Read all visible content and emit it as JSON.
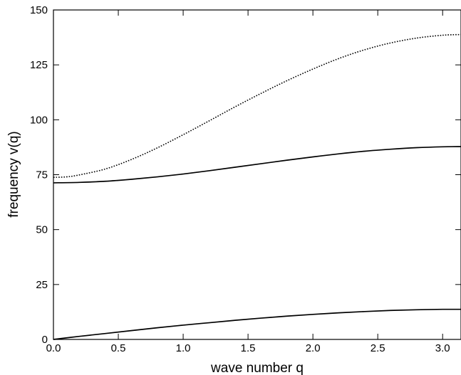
{
  "chart_data": {
    "type": "line",
    "title": "",
    "xlabel": "wave number q",
    "ylabel": "frequency v(q)",
    "xlim": [
      0,
      3.1416
    ],
    "ylim": [
      0,
      150
    ],
    "xticks": [
      "0.0",
      "0.5",
      "1.0",
      "1.5",
      "2.0",
      "2.5",
      "3.0"
    ],
    "yticks": [
      "0",
      "25",
      "50",
      "75",
      "100",
      "125",
      "150"
    ],
    "grid": false,
    "legend": "none",
    "series": [
      {
        "style": "solid",
        "x": [
          0,
          0.2,
          0.4,
          0.6,
          0.8,
          1.0,
          1.2,
          1.4,
          1.6,
          1.8,
          2.0,
          2.2,
          2.4,
          2.6,
          2.8,
          3.0,
          3.1416
        ],
        "y": [
          0,
          1.4,
          2.7,
          4.0,
          5.3,
          6.5,
          7.6,
          8.7,
          9.7,
          10.6,
          11.4,
          12.1,
          12.7,
          13.2,
          13.5,
          13.7,
          13.7
        ]
      },
      {
        "style": "solid",
        "x": [
          0,
          0.2,
          0.4,
          0.6,
          0.8,
          1.0,
          1.2,
          1.4,
          1.6,
          1.8,
          2.0,
          2.2,
          2.4,
          2.6,
          2.8,
          3.0,
          3.1416
        ],
        "y": [
          71.3,
          71.5,
          72.0,
          72.9,
          74.0,
          75.3,
          76.8,
          78.4,
          80.0,
          81.6,
          83.1,
          84.5,
          85.7,
          86.6,
          87.3,
          87.7,
          87.8
        ]
      },
      {
        "style": "dotted",
        "x": [
          0,
          0.1,
          0.2,
          0.4,
          0.6,
          0.8,
          1.0,
          1.2,
          1.4,
          1.6,
          1.8,
          2.0,
          2.2,
          2.4,
          2.6,
          2.8,
          3.0,
          3.1416
        ],
        "y": [
          73.8,
          74.0,
          74.9,
          77.6,
          81.9,
          87.2,
          93.2,
          99.5,
          105.9,
          112.0,
          117.8,
          123.1,
          127.9,
          131.9,
          135.0,
          137.2,
          138.5,
          138.8
        ]
      }
    ]
  }
}
